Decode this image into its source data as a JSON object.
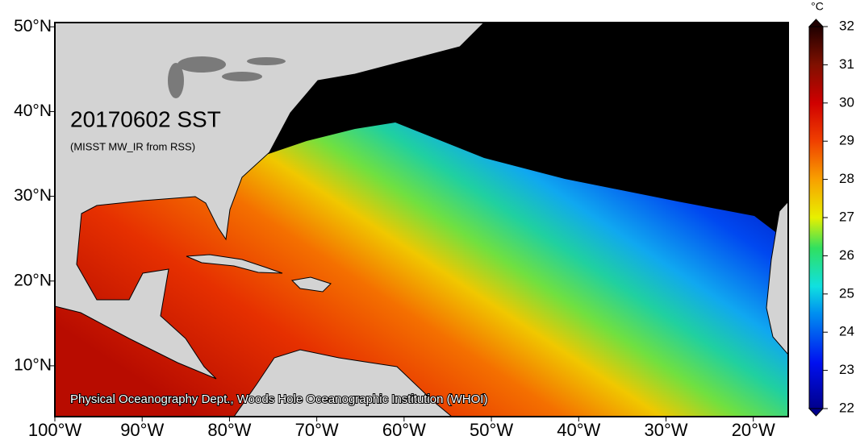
{
  "map": {
    "title": "20170602 SST",
    "subtitle": "(MISST MW_IR from RSS)",
    "credit": "Physical Oceanography Dept., Woods Hole Oceanographic Institution (WHOI)",
    "lonlim": [
      -100,
      -16
    ],
    "latlim": [
      4,
      50.5
    ],
    "lon_ticks": [
      {
        "value": -100,
        "label": "100°W"
      },
      {
        "value": -90,
        "label": "90°W"
      },
      {
        "value": -80,
        "label": "80°W"
      },
      {
        "value": -70,
        "label": "70°W"
      },
      {
        "value": -60,
        "label": "60°W"
      },
      {
        "value": -50,
        "label": "50°W"
      },
      {
        "value": -40,
        "label": "40°W"
      },
      {
        "value": -30,
        "label": "30°W"
      },
      {
        "value": -20,
        "label": "20°W"
      }
    ],
    "lat_ticks": [
      {
        "value": 50,
        "label": "50°N"
      },
      {
        "value": 40,
        "label": "40°N"
      },
      {
        "value": 30,
        "label": "30°N"
      },
      {
        "value": 20,
        "label": "20°N"
      },
      {
        "value": 10,
        "label": "10°N"
      }
    ]
  },
  "colorbar": {
    "unit": "°C",
    "lim": [
      22,
      32
    ],
    "ticks": [
      22,
      23,
      24,
      25,
      26,
      27,
      28,
      29,
      30,
      31,
      32
    ]
  }
}
